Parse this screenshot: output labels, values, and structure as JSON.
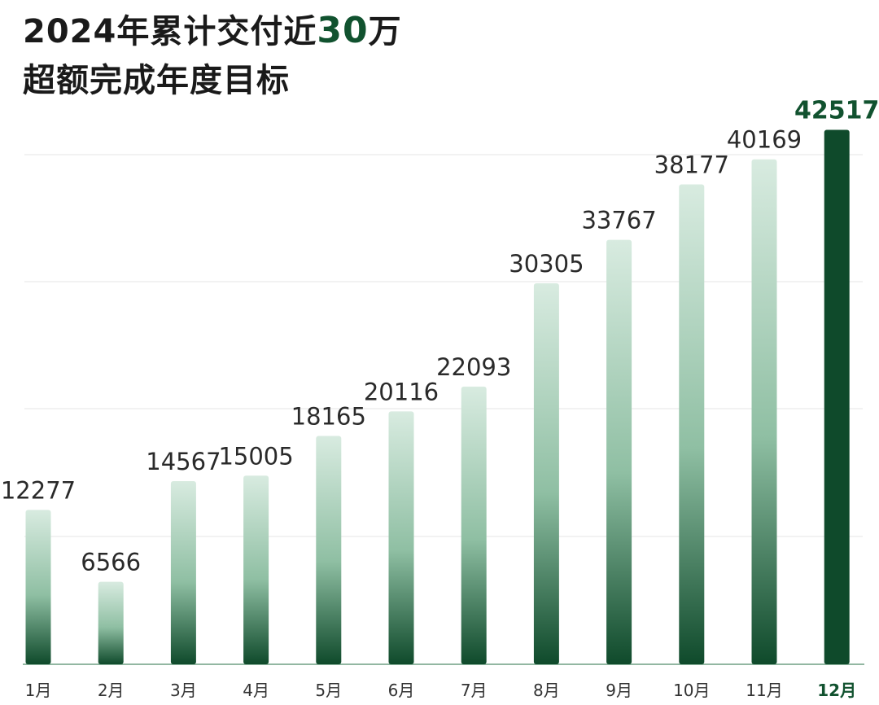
{
  "title": {
    "line1_prefix": "2024年累计交付近",
    "line1_highlight": "30",
    "line1_suffix": "万",
    "line2": "超额完成年度目标"
  },
  "colors": {
    "bar_dark": "#0f4a2b",
    "bar_light": "#d8ebe0",
    "highlight": "#11522f",
    "text": "#1a1a1a",
    "grid": "#e6e6e6"
  },
  "chart_data": {
    "type": "bar",
    "categories": [
      "1月",
      "2月",
      "3月",
      "4月",
      "5月",
      "6月",
      "7月",
      "8月",
      "9月",
      "10月",
      "11月",
      "12月"
    ],
    "values": [
      12277,
      6566,
      14567,
      15005,
      18165,
      20116,
      22093,
      30305,
      33767,
      38177,
      40169,
      42517
    ],
    "highlight_index": 11,
    "ylim": [
      0,
      43000
    ],
    "grid": true
  }
}
